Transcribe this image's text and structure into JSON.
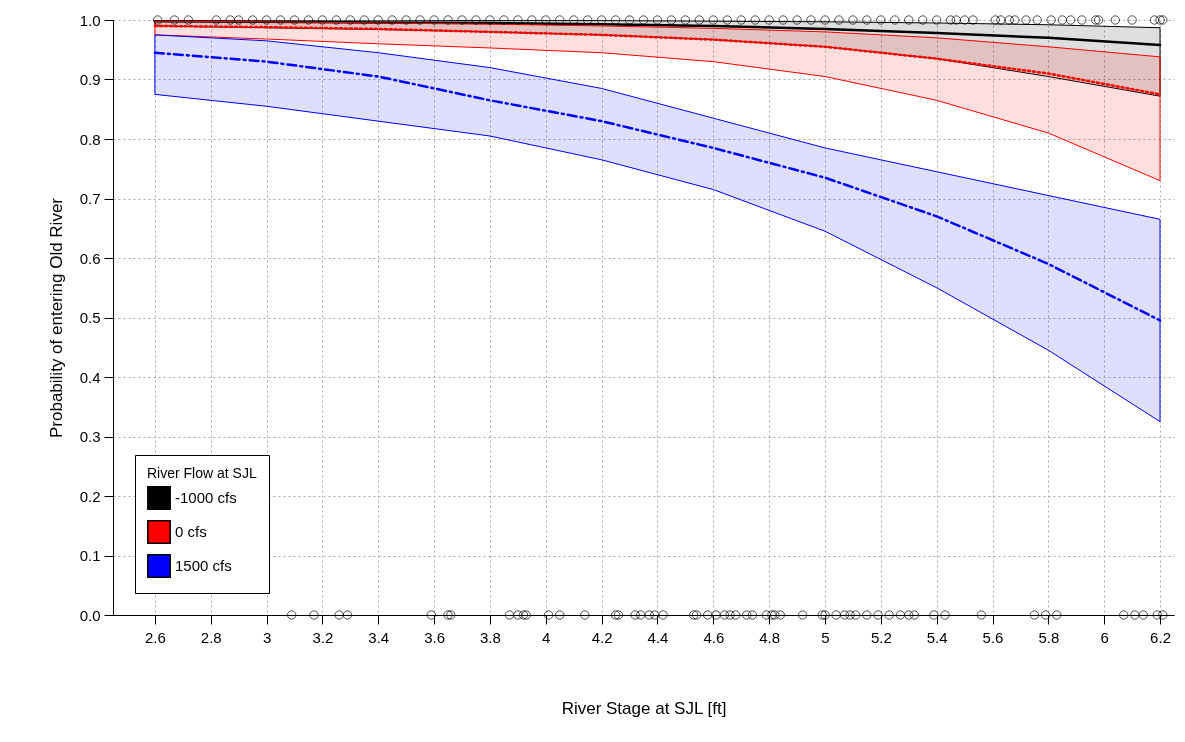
{
  "chart_data": {
    "type": "line",
    "xlabel": "River Stage at SJL [ft]",
    "ylabel": "Probability of entering Old River",
    "legend_title": "River Flow at SJL",
    "x": [
      2.6,
      3.0,
      3.4,
      3.8,
      4.2,
      4.6,
      5.0,
      5.4,
      5.8,
      6.2
    ],
    "series": [
      {
        "name": "-1000 cfs",
        "color": "#000000",
        "line_style": "solid",
        "values": [
          0.998,
          0.997,
          0.996,
          0.995,
          0.993,
          0.99,
          0.985,
          0.978,
          0.97,
          0.958
        ],
        "lower": [
          0.99,
          0.987,
          0.984,
          0.98,
          0.975,
          0.967,
          0.955,
          0.935,
          0.905,
          0.872
        ],
        "upper": [
          1.0,
          1.0,
          1.0,
          0.999,
          0.999,
          0.998,
          0.997,
          0.995,
          0.992,
          0.987
        ]
      },
      {
        "name": "0 cfs",
        "color": "#ff0000",
        "line_style": "dotted",
        "values": [
          0.99,
          0.988,
          0.985,
          0.98,
          0.975,
          0.967,
          0.955,
          0.935,
          0.91,
          0.875
        ],
        "lower": [
          0.975,
          0.968,
          0.96,
          0.953,
          0.945,
          0.93,
          0.905,
          0.865,
          0.81,
          0.73
        ],
        "upper": [
          0.998,
          0.997,
          0.995,
          0.993,
          0.99,
          0.986,
          0.98,
          0.97,
          0.955,
          0.938
        ]
      },
      {
        "name": "1500 cfs",
        "color": "#0000ff",
        "line_style": "dashed",
        "values": [
          0.945,
          0.93,
          0.905,
          0.865,
          0.83,
          0.785,
          0.735,
          0.67,
          0.59,
          0.495
        ],
        "lower": [
          0.875,
          0.855,
          0.83,
          0.805,
          0.765,
          0.715,
          0.645,
          0.55,
          0.445,
          0.325
        ],
        "upper": [
          0.975,
          0.965,
          0.945,
          0.92,
          0.885,
          0.835,
          0.785,
          0.745,
          0.705,
          0.665
        ]
      },
      {
        "type": "scatter",
        "color": "#000000",
        "marker": "circle",
        "x": [
          2.61,
          2.67,
          2.72,
          2.82,
          2.87,
          2.9,
          2.95,
          3.0,
          3.05,
          3.1,
          3.15,
          3.2,
          3.25,
          3.3,
          3.35,
          3.4,
          3.45,
          3.5,
          3.55,
          3.6,
          3.65,
          3.7,
          3.75,
          3.8,
          3.85,
          3.9,
          3.95,
          4.0,
          4.05,
          4.1,
          4.15,
          4.2,
          4.25,
          4.3,
          4.35,
          4.4,
          4.45,
          4.5,
          4.55,
          4.6,
          4.65,
          4.7,
          4.75,
          4.8,
          4.85,
          4.9,
          4.95,
          5.0,
          5.05,
          5.1,
          5.15,
          5.2,
          5.25,
          5.3,
          5.35,
          5.4,
          5.45,
          5.47,
          5.5,
          5.53,
          5.61,
          5.63,
          5.66,
          5.68,
          5.72,
          5.76,
          5.81,
          5.85,
          5.88,
          5.92,
          5.97,
          5.98,
          6.04,
          6.1,
          6.18,
          6.2,
          6.21,
          3.09,
          3.17,
          3.26,
          3.29,
          3.59,
          3.65,
          3.66,
          3.87,
          3.9,
          3.92,
          3.93,
          4.01,
          4.05,
          4.14,
          4.25,
          4.26,
          4.32,
          4.34,
          4.37,
          4.39,
          4.42,
          4.53,
          4.54,
          4.58,
          4.61,
          4.64,
          4.66,
          4.68,
          4.72,
          4.74,
          4.79,
          4.81,
          4.82,
          4.84,
          4.92,
          4.99,
          5.0,
          5.04,
          5.07,
          5.09,
          5.11,
          5.15,
          5.19,
          5.23,
          5.27,
          5.3,
          5.32,
          5.39,
          5.43,
          5.56,
          5.75,
          5.79,
          5.83,
          6.07,
          6.11,
          6.14,
          6.19,
          6.21
        ],
        "values": [
          1,
          1,
          1,
          1,
          1,
          1,
          1,
          1,
          1,
          1,
          1,
          1,
          1,
          1,
          1,
          1,
          1,
          1,
          1,
          1,
          1,
          1,
          1,
          1,
          1,
          1,
          1,
          1,
          1,
          1,
          1,
          1,
          1,
          1,
          1,
          1,
          1,
          1,
          1,
          1,
          1,
          1,
          1,
          1,
          1,
          1,
          1,
          1,
          1,
          1,
          1,
          1,
          1,
          1,
          1,
          1,
          1,
          1,
          1,
          1,
          1,
          1,
          1,
          1,
          1,
          1,
          1,
          1,
          1,
          1,
          1,
          1,
          1,
          1,
          1,
          1,
          1,
          0,
          0,
          0,
          0,
          0,
          0,
          0,
          0,
          0,
          0,
          0,
          0,
          0,
          0,
          0,
          0,
          0,
          0,
          0,
          0,
          0,
          0,
          0,
          0,
          0,
          0,
          0,
          0,
          0,
          0,
          0,
          0,
          0,
          0,
          0,
          0,
          0,
          0,
          0,
          0,
          0,
          0,
          0,
          0,
          0,
          0,
          0,
          0,
          0,
          0,
          0,
          0,
          0,
          0,
          0,
          0,
          0,
          0
        ]
      }
    ],
    "xlim": [
      2.45,
      6.25
    ],
    "ylim": [
      0,
      1
    ],
    "xticks": [
      2.6,
      2.8,
      3,
      3.2,
      3.4,
      3.6,
      3.8,
      4,
      4.2,
      4.4,
      4.6,
      4.8,
      5,
      5.2,
      5.4,
      5.6,
      5.8,
      6,
      6.2
    ],
    "yticks": [
      {
        "value": 0,
        "label": "0.0"
      },
      0.1,
      0.2,
      0.3,
      0.4,
      0.5,
      0.6,
      0.7,
      0.8,
      0.9,
      {
        "value": 1,
        "label": "1.0"
      }
    ],
    "grid": true,
    "legend": "bottom left"
  }
}
